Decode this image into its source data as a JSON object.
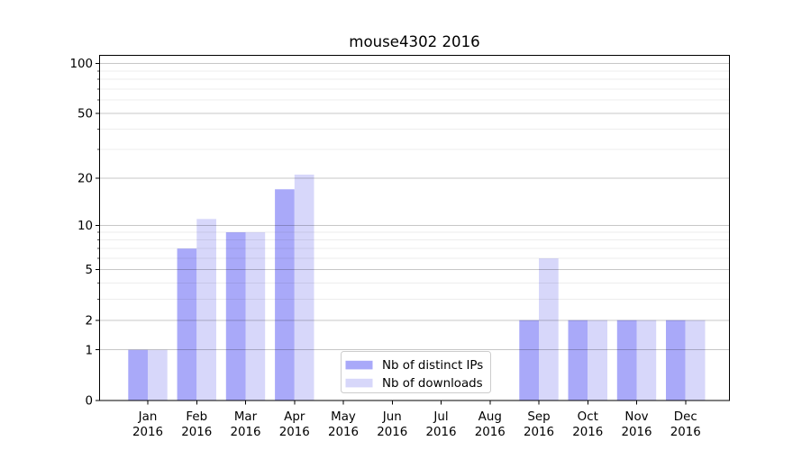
{
  "chart_data": {
    "type": "bar",
    "title": "mouse4302 2016",
    "categories": [
      "Jan",
      "Feb",
      "Mar",
      "Apr",
      "May",
      "Jun",
      "Jul",
      "Aug",
      "Sep",
      "Oct",
      "Nov",
      "Dec"
    ],
    "year_label": "2016",
    "series": [
      {
        "name": "Nb of distinct IPs",
        "color": "#a9a9f9",
        "values": [
          1,
          7,
          9,
          17,
          0,
          0,
          0,
          0,
          2,
          2,
          2,
          2
        ]
      },
      {
        "name": "Nb of downloads",
        "color": "#d7d7fa",
        "values": [
          1,
          11,
          9,
          21,
          0,
          0,
          0,
          0,
          6,
          2,
          2,
          2
        ]
      }
    ],
    "y_axis": {
      "scale": "log1p",
      "major_ticks": [
        0,
        1,
        2,
        5,
        10,
        20,
        50,
        100
      ],
      "minor_ticks": [
        3,
        4,
        6,
        7,
        8,
        9,
        30,
        40,
        60,
        70,
        80,
        90
      ],
      "ylim": [
        0,
        112
      ]
    },
    "legend": {
      "entries": [
        "Nb of distinct IPs",
        "Nb of downloads"
      ],
      "position": "lower center"
    },
    "colors": {
      "axis": "#000000",
      "grid_major": "rgba(0,0,0,0.22)",
      "grid_minor": "rgba(0,0,0,0.07)",
      "legend_border": "#cccccc"
    }
  }
}
